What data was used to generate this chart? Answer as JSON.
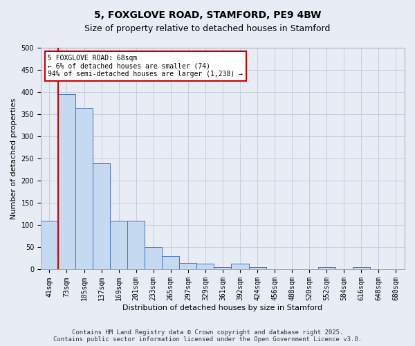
{
  "title": "5, FOXGLOVE ROAD, STAMFORD, PE9 4BW",
  "subtitle": "Size of property relative to detached houses in Stamford",
  "xlabel": "Distribution of detached houses by size in Stamford",
  "ylabel": "Number of detached properties",
  "bin_labels": [
    "41sqm",
    "73sqm",
    "105sqm",
    "137sqm",
    "169sqm",
    "201sqm",
    "233sqm",
    "265sqm",
    "297sqm",
    "329sqm",
    "361sqm",
    "392sqm",
    "424sqm",
    "456sqm",
    "488sqm",
    "520sqm",
    "552sqm",
    "584sqm",
    "616sqm",
    "648sqm",
    "680sqm"
  ],
  "bar_values": [
    110,
    395,
    365,
    240,
    110,
    110,
    50,
    30,
    15,
    13,
    5,
    13,
    5,
    0,
    0,
    0,
    5,
    0,
    5,
    0,
    0
  ],
  "bar_color": "#c5d9f0",
  "bar_edge_color": "#4472c4",
  "annotation_line1": "5 FOXGLOVE ROAD: 68sqm",
  "annotation_line2": "← 6% of detached houses are smaller (74)",
  "annotation_line3": "94% of semi-detached houses are larger (1,238) →",
  "annotation_box_color": "#ffffff",
  "annotation_box_edge_color": "#cc0000",
  "vline_color": "#cc0000",
  "ylim": [
    0,
    500
  ],
  "yticks": [
    0,
    50,
    100,
    150,
    200,
    250,
    300,
    350,
    400,
    450,
    500
  ],
  "grid_color": "#c0c8d8",
  "background_color": "#e8edf5",
  "footer_line1": "Contains HM Land Registry data © Crown copyright and database right 2025.",
  "footer_line2": "Contains public sector information licensed under the Open Government Licence v3.0.",
  "title_fontsize": 10,
  "subtitle_fontsize": 9,
  "axis_label_fontsize": 8,
  "tick_fontsize": 7,
  "footer_fontsize": 6.5
}
